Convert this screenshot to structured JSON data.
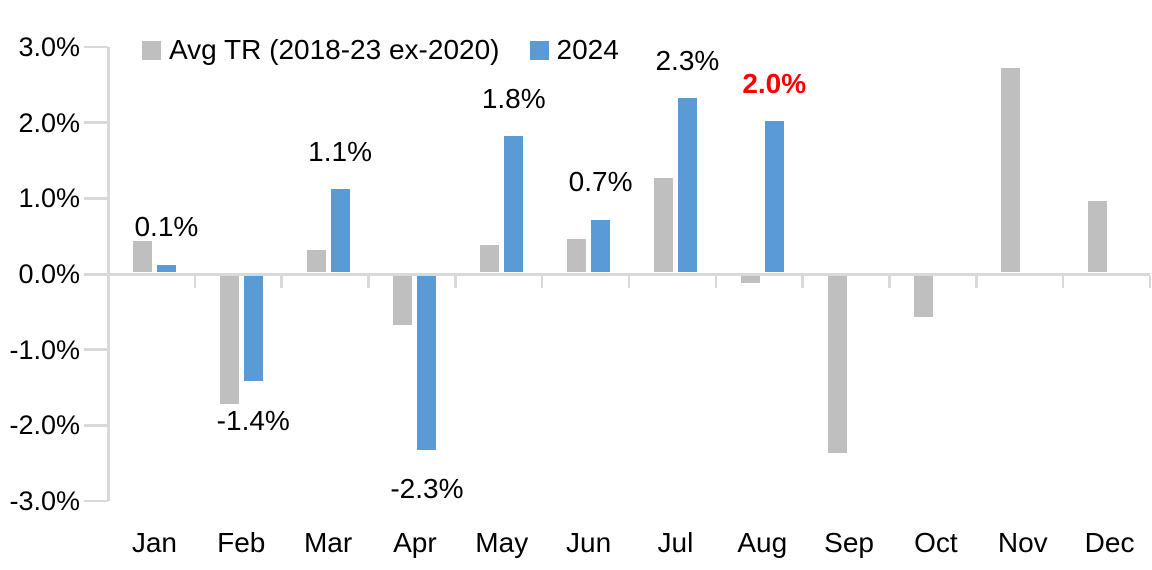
{
  "chart_data": {
    "type": "bar",
    "title": "",
    "xlabel": "",
    "ylabel": "",
    "categories": [
      "Jan",
      "Feb",
      "Mar",
      "Apr",
      "May",
      "Jun",
      "Jul",
      "Aug",
      "Sep",
      "Oct",
      "Nov",
      "Dec"
    ],
    "series": [
      {
        "name": "Avg TR (2018-23 ex-2020)",
        "color": "#BFBFBF",
        "values": [
          0.42,
          -1.7,
          0.3,
          -0.65,
          0.37,
          0.44,
          1.25,
          -0.1,
          -2.35,
          -0.55,
          2.7,
          0.95
        ]
      },
      {
        "name": "2024",
        "color": "#5B9BD5",
        "values": [
          0.1,
          -1.4,
          1.1,
          -2.3,
          1.8,
          0.7,
          2.3,
          2.0,
          null,
          null,
          null,
          null
        ]
      }
    ],
    "data_labels": [
      {
        "category": "Jan",
        "text": "0.1%",
        "color": "#000000",
        "bold": false
      },
      {
        "category": "Feb",
        "text": "-1.4%",
        "color": "#000000",
        "bold": false
      },
      {
        "category": "Mar",
        "text": "1.1%",
        "color": "#000000",
        "bold": false
      },
      {
        "category": "Apr",
        "text": "-2.3%",
        "color": "#000000",
        "bold": false
      },
      {
        "category": "May",
        "text": "1.8%",
        "color": "#000000",
        "bold": false
      },
      {
        "category": "Jun",
        "text": "0.7%",
        "color": "#000000",
        "bold": false
      },
      {
        "category": "Jul",
        "text": "2.3%",
        "color": "#000000",
        "bold": false
      },
      {
        "category": "Aug",
        "text": "2.0%",
        "color": "#FF0000",
        "bold": true
      }
    ],
    "y_ticks": [
      "3.0%",
      "2.0%",
      "1.0%",
      "0.0%",
      "-1.0%",
      "-2.0%",
      "-3.0%"
    ],
    "ylim": [
      -3.0,
      3.0
    ],
    "grid": false,
    "legend_position": "top",
    "axis_color": "#D9D9D9",
    "text_color": "#000000",
    "highlight_color": "#FF0000"
  }
}
